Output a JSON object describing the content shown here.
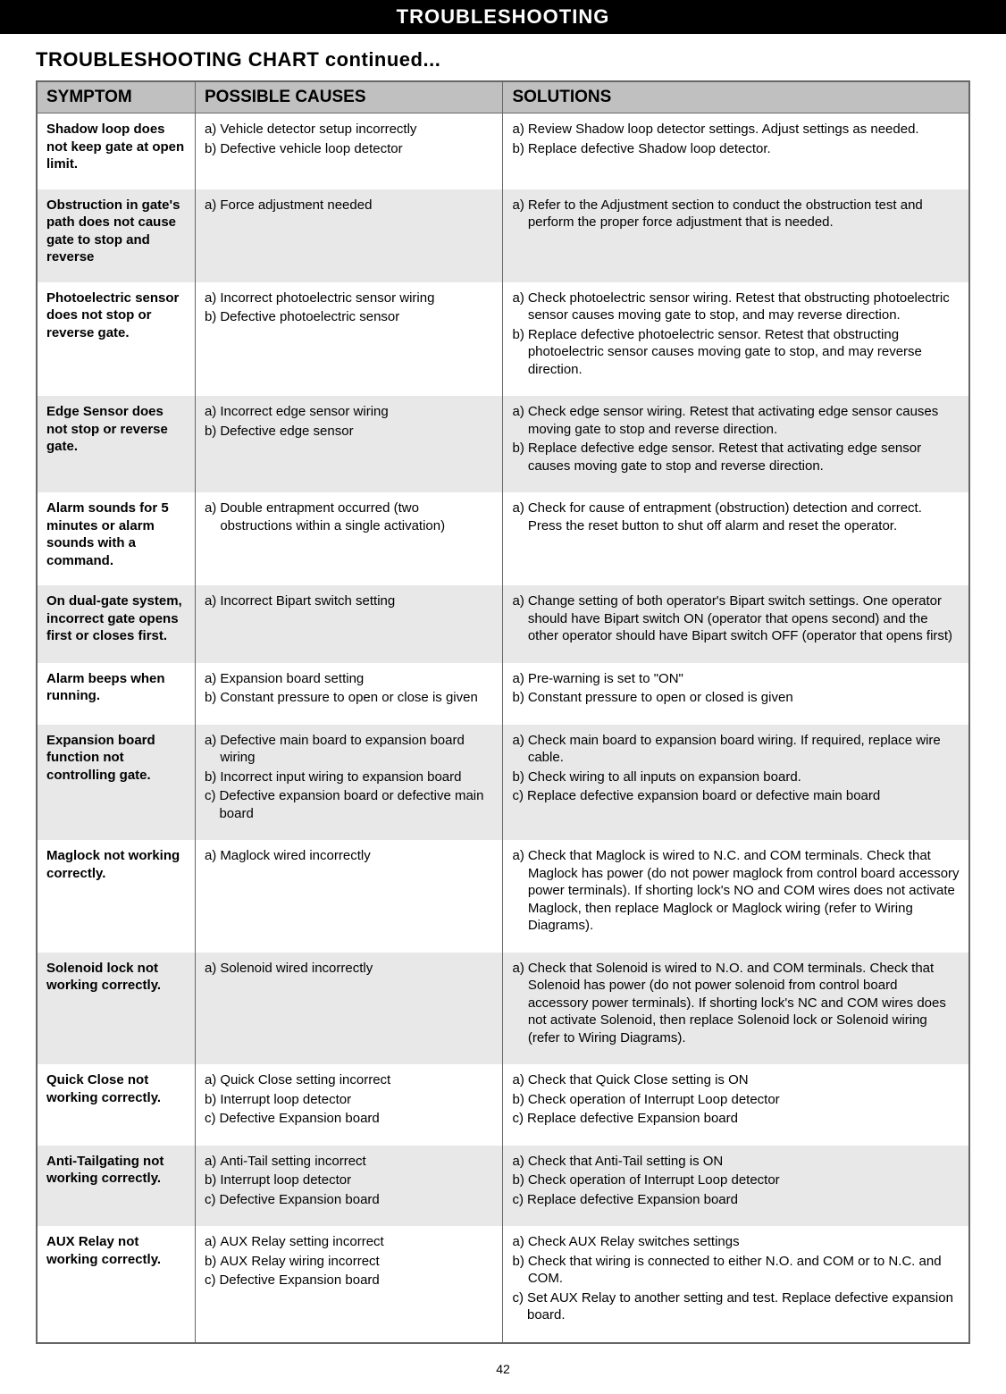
{
  "banner": "TROUBLESHOOTING",
  "subtitle": "TROUBLESHOOTING CHART continued...",
  "headers": {
    "symptom": "SYMPTOM",
    "causes": "POSSIBLE CAUSES",
    "solutions": "SOLUTIONS"
  },
  "page_number": "42",
  "rows": [
    {
      "symptom": "Shadow loop does not keep gate at open limit.",
      "causes": [
        {
          "tag": "a)",
          "text": "Vehicle detector setup incorrectly"
        },
        {
          "tag": "b)",
          "text": "Defective vehicle loop detector"
        }
      ],
      "solutions": [
        {
          "tag": "a)",
          "text": "Review Shadow loop detector settings. Adjust settings as needed."
        },
        {
          "tag": "b)",
          "text": "Replace defective Shadow loop detector."
        }
      ]
    },
    {
      "symptom": "Obstruction in gate's path does not cause gate to stop and reverse",
      "causes": [
        {
          "tag": "a)",
          "text": "Force adjustment needed"
        }
      ],
      "solutions": [
        {
          "tag": "a)",
          "text": "Refer to the Adjustment section to conduct the obstruction test and perform the proper force adjustment that is needed."
        }
      ]
    },
    {
      "symptom": "Photoelectric sensor does not stop or reverse gate.",
      "causes": [
        {
          "tag": "a)",
          "text": "Incorrect photoelectric sensor wiring"
        },
        {
          "tag": "b)",
          "text": "Defective photoelectric sensor"
        }
      ],
      "solutions": [
        {
          "tag": "a)",
          "text": "Check photoelectric sensor wiring. Retest that obstructing photoelectric sensor causes moving gate to stop, and may reverse direction."
        },
        {
          "tag": "b)",
          "text": "Replace defective photoelectric sensor. Retest that obstructing photoelectric sensor causes moving gate to stop, and may reverse direction."
        }
      ]
    },
    {
      "symptom": "Edge Sensor does not stop or reverse gate.",
      "causes": [
        {
          "tag": "a)",
          "text": "Incorrect edge sensor wiring"
        },
        {
          "tag": "b)",
          "text": "Defective edge sensor"
        }
      ],
      "solutions": [
        {
          "tag": "a)",
          "text": "Check edge sensor wiring. Retest that activating edge sensor causes moving gate to stop and reverse direction."
        },
        {
          "tag": "b)",
          "text": "Replace defective edge sensor. Retest that activating edge sensor causes moving gate to stop and reverse direction."
        }
      ]
    },
    {
      "symptom": "Alarm sounds for 5 minutes or alarm sounds with a command.",
      "causes": [
        {
          "tag": "a)",
          "text": "Double entrapment occurred (two obstructions within a single activation)"
        }
      ],
      "solutions": [
        {
          "tag": "a)",
          "text": "Check for cause of entrapment (obstruction) detection and correct. Press the reset button to shut off alarm and reset the operator."
        }
      ]
    },
    {
      "symptom": "On dual-gate system, incorrect gate opens first or closes first.",
      "causes": [
        {
          "tag": "a)",
          "text": "Incorrect Bipart switch setting"
        }
      ],
      "solutions": [
        {
          "tag": "a)",
          "text": "Change setting of both operator's Bipart switch settings. One operator should have Bipart switch ON (operator that opens second) and the other operator should have Bipart switch OFF (operator that opens first)"
        }
      ]
    },
    {
      "symptom": "Alarm beeps when running.",
      "causes": [
        {
          "tag": "a)",
          "text": "Expansion board setting"
        },
        {
          "tag": "b)",
          "text": "Constant pressure to open or close is given"
        }
      ],
      "solutions": [
        {
          "tag": "a)",
          "text": "Pre-warning is set to \"ON\""
        },
        {
          "tag": "b)",
          "text": "Constant pressure to open or closed is given"
        }
      ]
    },
    {
      "symptom": "Expansion board function not controlling gate.",
      "causes": [
        {
          "tag": "a)",
          "text": "Defective main board to expansion board wiring"
        },
        {
          "tag": "b)",
          "text": "Incorrect input wiring to expansion board"
        },
        {
          "tag": "c)",
          "text": "Defective expansion board or defective main board"
        }
      ],
      "solutions": [
        {
          "tag": "a)",
          "text": "Check main board to expansion board wiring. If required, replace wire cable."
        },
        {
          "tag": "b)",
          "text": "Check wiring to all inputs on expansion board."
        },
        {
          "tag": "c)",
          "text": "Replace defective expansion board or defective main board"
        }
      ]
    },
    {
      "symptom": "Maglock not working correctly.",
      "causes": [
        {
          "tag": "a)",
          "text": "Maglock wired incorrectly"
        }
      ],
      "solutions": [
        {
          "tag": "a)",
          "text": "Check that Maglock is wired to N.C. and COM terminals. Check that Maglock has power (do not power maglock from control board accessory power terminals). If shorting lock's NO and COM wires does not activate Maglock, then replace Maglock or Maglock wiring (refer to Wiring Diagrams)."
        }
      ]
    },
    {
      "symptom": "Solenoid lock not working correctly.",
      "causes": [
        {
          "tag": "a)",
          "text": "Solenoid wired incorrectly"
        }
      ],
      "solutions": [
        {
          "tag": "a)",
          "text": "Check that Solenoid is wired to N.O. and COM terminals. Check that Solenoid has power (do not power solenoid from control board accessory power terminals). If shorting lock's NC and COM wires does not activate Solenoid, then replace Solenoid lock or Solenoid wiring (refer to Wiring Diagrams)."
        }
      ]
    },
    {
      "symptom": "Quick Close not working correctly.",
      "causes": [
        {
          "tag": "a)",
          "text": "Quick Close setting incorrect"
        },
        {
          "tag": "b)",
          "text": "Interrupt loop detector"
        },
        {
          "tag": "c)",
          "text": "Defective Expansion board"
        }
      ],
      "solutions": [
        {
          "tag": "a)",
          "text": "Check that Quick Close setting is ON"
        },
        {
          "tag": "b)",
          "text": "Check operation of Interrupt Loop detector"
        },
        {
          "tag": "c)",
          "text": "Replace defective Expansion board"
        }
      ]
    },
    {
      "symptom": "Anti-Tailgating not working correctly.",
      "causes": [
        {
          "tag": "a)",
          "text": "Anti-Tail setting incorrect"
        },
        {
          "tag": "b)",
          "text": "Interrupt loop detector"
        },
        {
          "tag": "c)",
          "text": "Defective Expansion board"
        }
      ],
      "solutions": [
        {
          "tag": "a)",
          "text": "Check that Anti-Tail setting is ON"
        },
        {
          "tag": "b)",
          "text": "Check operation of Interrupt Loop detector"
        },
        {
          "tag": "c)",
          "text": "Replace defective Expansion board"
        }
      ]
    },
    {
      "symptom": "AUX Relay not working correctly.",
      "causes": [
        {
          "tag": "a)",
          "text": " AUX Relay setting incorrect"
        },
        {
          "tag": "b)",
          "text": " AUX Relay wiring incorrect"
        },
        {
          "tag": "c)",
          "text": " Defective Expansion board"
        }
      ],
      "solutions": [
        {
          "tag": "a)",
          "text": "Check AUX Relay switches settings"
        },
        {
          "tag": "b)",
          "text": "Check that wiring is connected to either N.O. and COM or to N.C. and COM."
        },
        {
          "tag": "c)",
          "text": "Set AUX Relay to another setting and test. Replace defective expansion board."
        }
      ]
    }
  ]
}
